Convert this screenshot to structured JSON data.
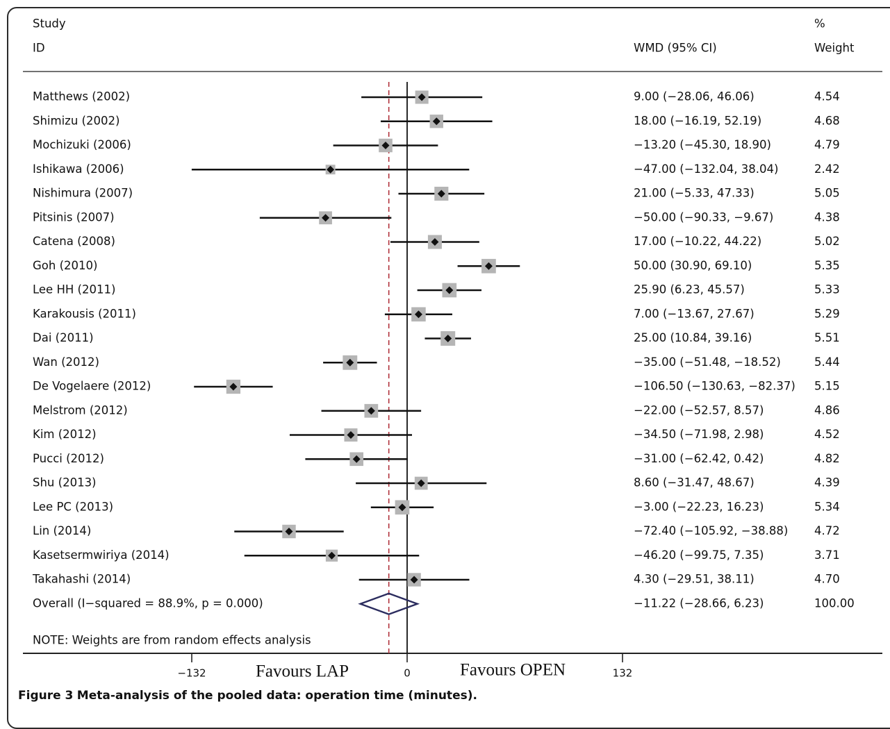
{
  "figure": {
    "caption_label": "Figure 3",
    "caption_text": "Meta-analysis of the pooled data: operation time (minutes)."
  },
  "chart_data": {
    "type": "forest",
    "header": {
      "study_line1": "Study",
      "study_line2": "ID",
      "effect_label": "WMD (95% CI)",
      "weight_line1": "%",
      "weight_line2": "Weight"
    },
    "studies": [
      {
        "label": "Matthews (2002)",
        "est": 9.0,
        "lo": -28.06,
        "hi": 46.06,
        "ci_text": "9.00 (−28.06, 46.06)",
        "weight": 4.54,
        "weight_text": "4.54"
      },
      {
        "label": "Shimizu (2002)",
        "est": 18.0,
        "lo": -16.19,
        "hi": 52.19,
        "ci_text": "18.00 (−16.19, 52.19)",
        "weight": 4.68,
        "weight_text": "4.68"
      },
      {
        "label": "Mochizuki (2006)",
        "est": -13.2,
        "lo": -45.3,
        "hi": 18.9,
        "ci_text": "−13.20 (−45.30, 18.90)",
        "weight": 4.79,
        "weight_text": "4.79"
      },
      {
        "label": "Ishikawa (2006)",
        "est": -47.0,
        "lo": -132.04,
        "hi": 38.04,
        "ci_text": "−47.00 (−132.04, 38.04)",
        "weight": 2.42,
        "weight_text": "2.42"
      },
      {
        "label": "Nishimura (2007)",
        "est": 21.0,
        "lo": -5.33,
        "hi": 47.33,
        "ci_text": "21.00 (−5.33, 47.33)",
        "weight": 5.05,
        "weight_text": "5.05"
      },
      {
        "label": "Pitsinis (2007)",
        "est": -50.0,
        "lo": -90.33,
        "hi": -9.67,
        "ci_text": "−50.00 (−90.33, −9.67)",
        "weight": 4.38,
        "weight_text": "4.38"
      },
      {
        "label": "Catena (2008)",
        "est": 17.0,
        "lo": -10.22,
        "hi": 44.22,
        "ci_text": "17.00 (−10.22, 44.22)",
        "weight": 5.02,
        "weight_text": "5.02"
      },
      {
        "label": "Goh (2010)",
        "est": 50.0,
        "lo": 30.9,
        "hi": 69.1,
        "ci_text": "50.00 (30.90, 69.10)",
        "weight": 5.35,
        "weight_text": "5.35"
      },
      {
        "label": "Lee HH (2011)",
        "est": 25.9,
        "lo": 6.23,
        "hi": 45.57,
        "ci_text": "25.90 (6.23, 45.57)",
        "weight": 5.33,
        "weight_text": "5.33"
      },
      {
        "label": "Karakousis (2011)",
        "est": 7.0,
        "lo": -13.67,
        "hi": 27.67,
        "ci_text": "7.00 (−13.67, 27.67)",
        "weight": 5.29,
        "weight_text": "5.29"
      },
      {
        "label": "Dai (2011)",
        "est": 25.0,
        "lo": 10.84,
        "hi": 39.16,
        "ci_text": "25.00 (10.84, 39.16)",
        "weight": 5.51,
        "weight_text": "5.51"
      },
      {
        "label": "Wan (2012)",
        "est": -35.0,
        "lo": -51.48,
        "hi": -18.52,
        "ci_text": "−35.00 (−51.48, −18.52)",
        "weight": 5.44,
        "weight_text": "5.44"
      },
      {
        "label": "De Vogelaere (2012)",
        "est": -106.5,
        "lo": -130.63,
        "hi": -82.37,
        "ci_text": "−106.50 (−130.63, −82.37)",
        "weight": 5.15,
        "weight_text": "5.15"
      },
      {
        "label": "Melstrom (2012)",
        "est": -22.0,
        "lo": -52.57,
        "hi": 8.57,
        "ci_text": "−22.00 (−52.57, 8.57)",
        "weight": 4.86,
        "weight_text": "4.86"
      },
      {
        "label": "Kim (2012)",
        "est": -34.5,
        "lo": -71.98,
        "hi": 2.98,
        "ci_text": "−34.50 (−71.98, 2.98)",
        "weight": 4.52,
        "weight_text": "4.52"
      },
      {
        "label": "Pucci (2012)",
        "est": -31.0,
        "lo": -62.42,
        "hi": 0.42,
        "ci_text": "−31.00 (−62.42, 0.42)",
        "weight": 4.82,
        "weight_text": "4.82"
      },
      {
        "label": "Shu (2013)",
        "est": 8.6,
        "lo": -31.47,
        "hi": 48.67,
        "ci_text": "8.60 (−31.47, 48.67)",
        "weight": 4.39,
        "weight_text": "4.39"
      },
      {
        "label": "Lee PC (2013)",
        "est": -3.0,
        "lo": -22.23,
        "hi": 16.23,
        "ci_text": "−3.00 (−22.23, 16.23)",
        "weight": 5.34,
        "weight_text": "5.34"
      },
      {
        "label": "Lin (2014)",
        "est": -72.4,
        "lo": -105.92,
        "hi": -38.88,
        "ci_text": "−72.40 (−105.92, −38.88)",
        "weight": 4.72,
        "weight_text": "4.72"
      },
      {
        "label": "Kasetsermwiriya (2014)",
        "est": -46.2,
        "lo": -99.75,
        "hi": 7.35,
        "ci_text": "−46.20 (−99.75, 7.35)",
        "weight": 3.71,
        "weight_text": "3.71"
      },
      {
        "label": "Takahashi (2014)",
        "est": 4.3,
        "lo": -29.51,
        "hi": 38.11,
        "ci_text": "4.30 (−29.51, 38.11)",
        "weight": 4.7,
        "weight_text": "4.70"
      }
    ],
    "overall": {
      "label": "Overall  (I−squared = 88.9%, p = 0.000)",
      "est": -11.22,
      "lo": -28.66,
      "hi": 6.23,
      "ci_text": "−11.22 (−28.66, 6.23)",
      "weight_text": "100.00"
    },
    "note": "NOTE: Weights are from random effects analysis",
    "x_axis": {
      "ticks": [
        -132,
        0,
        132
      ],
      "tick_labels": [
        "−132",
        "0",
        "132"
      ],
      "xlim": [
        -132,
        132
      ]
    },
    "favours_left": "Favours LAP",
    "favours_right": "Favours OPEN",
    "colors": {
      "ci_line": "#111111",
      "marker_box": "#b5b5b5",
      "diamond": "#2b2c5e",
      "reference_line": "#b0303a"
    }
  }
}
